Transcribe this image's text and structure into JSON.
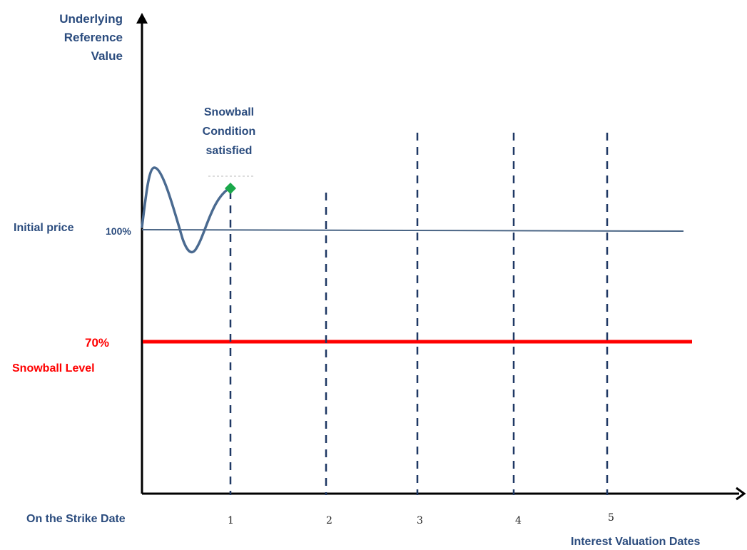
{
  "diagram": {
    "y_axis_title_lines": [
      "Underlying",
      "Reference",
      "Value"
    ],
    "x_axis_title": "Interest Valuation Dates",
    "start_label": "On the Strike Date",
    "initial_price_label": "Initial price",
    "initial_price_value": "100%",
    "snowball_level_value": "70%",
    "snowball_level_label": "Snowball Level",
    "condition_lines": [
      "Snowball",
      "Condition",
      "satisfied"
    ],
    "date_ticks": [
      "1",
      "2",
      "3",
      "4",
      "5"
    ],
    "colors": {
      "text_blue": "#2b4c7e",
      "axis": "#000000",
      "initial_line": "#4a6585",
      "dashed_lines": "#1f3864",
      "snowball_line": "#ff0000",
      "price_path": "#4a6a90",
      "marker": "#1aa84a"
    }
  }
}
